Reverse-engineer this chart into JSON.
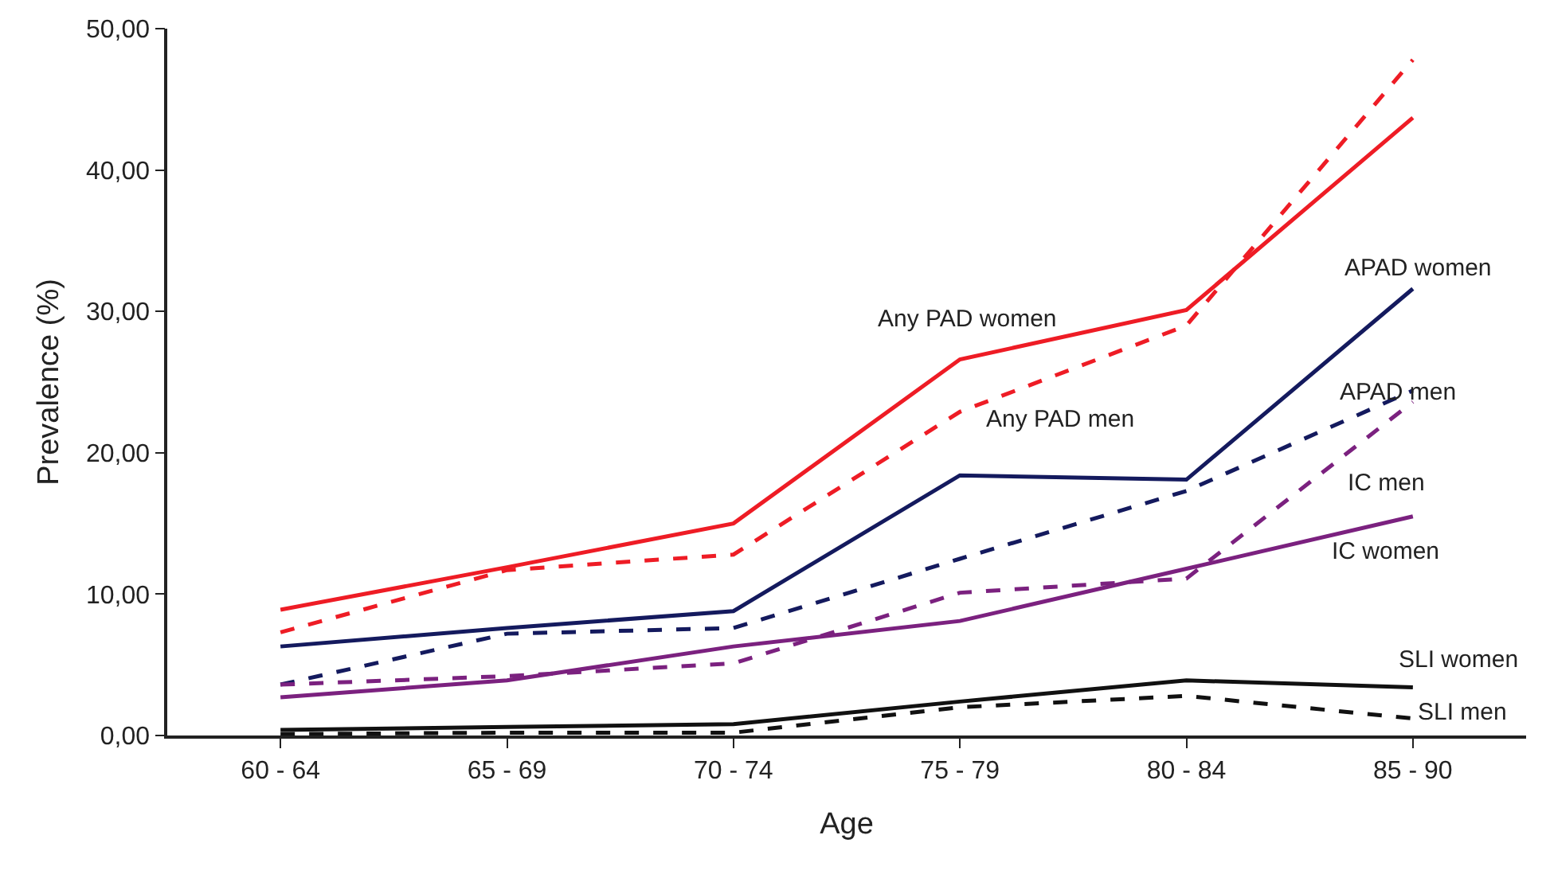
{
  "chart_data": {
    "type": "line",
    "xlabel": "Age",
    "ylabel": "Prevalence (%)",
    "categories": [
      "60 - 64",
      "65 - 69",
      "70 - 74",
      "75 - 79",
      "80 - 84",
      "85 - 90"
    ],
    "series": [
      {
        "color": "#ee1c25",
        "line_style": "solid",
        "values": [
          8.9,
          11.9,
          15.0,
          26.6,
          30.1,
          43.7
        ]
      },
      {
        "color": "#ee1c25",
        "line_style": "dashed",
        "values": [
          7.3,
          11.7,
          12.8,
          22.9,
          29.0,
          47.8
        ]
      },
      {
        "color": "#141a5e",
        "line_style": "solid",
        "values": [
          6.3,
          7.6,
          8.8,
          18.4,
          18.1,
          31.6
        ]
      },
      {
        "color": "#141a5e",
        "line_style": "dashed",
        "values": [
          3.6,
          7.2,
          7.6,
          12.5,
          17.3,
          24.4
        ]
      },
      {
        "color": "#7b217f",
        "line_style": "dashed",
        "values": [
          3.6,
          4.2,
          5.1,
          10.1,
          11.1,
          23.6
        ]
      },
      {
        "color": "#7b217f",
        "line_style": "solid",
        "values": [
          2.7,
          3.9,
          6.3,
          8.1,
          11.8,
          15.5
        ]
      },
      {
        "color": "#111111",
        "line_style": "solid",
        "values": [
          0.4,
          0.6,
          0.8,
          2.4,
          3.9,
          3.4
        ]
      },
      {
        "color": "#111111",
        "line_style": "dashed",
        "values": [
          0.1,
          0.2,
          0.2,
          2.0,
          2.8,
          1.2
        ]
      }
    ],
    "annotations": [
      "Any PAD women",
      "Any PAD men",
      "APAD women",
      "APAD men",
      "IC men",
      "IC women",
      "SLI women",
      "SLI men"
    ],
    "ylim": [
      0,
      50
    ],
    "yticks": [
      {
        "value": 0,
        "label": "0,00"
      },
      {
        "value": 10,
        "label": "10,00"
      },
      {
        "value": 20,
        "label": "20,00"
      },
      {
        "value": 30,
        "label": "30,00"
      },
      {
        "value": 40,
        "label": "40,00"
      },
      {
        "value": 50,
        "label": "50,00"
      }
    ],
    "grid": false,
    "marker": "none"
  }
}
